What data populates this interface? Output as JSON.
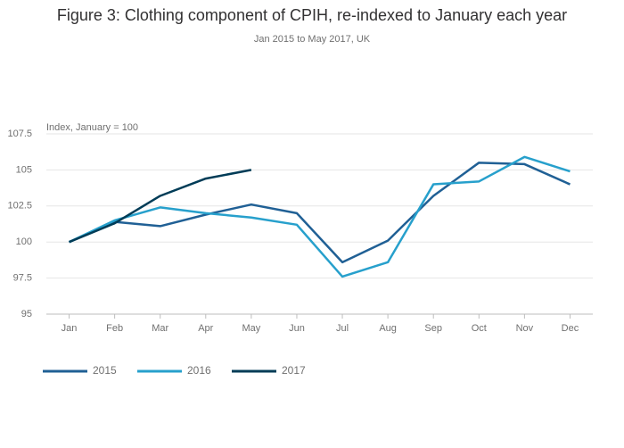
{
  "chart_data": {
    "type": "line",
    "title": "Figure 3: Clothing component of CPIH, re-indexed to January each year",
    "subtitle": "Jan 2015 to May 2017, UK",
    "y_label": "Index, January = 100",
    "categories": [
      "Jan",
      "Feb",
      "Mar",
      "Apr",
      "May",
      "Jun",
      "Jul",
      "Aug",
      "Sep",
      "Oct",
      "Nov",
      "Dec"
    ],
    "series": [
      {
        "name": "2015",
        "color": "#206095",
        "values": [
          100,
          101.4,
          101.1,
          101.9,
          102.6,
          102.0,
          98.6,
          100.1,
          103.2,
          105.5,
          105.4,
          104.0
        ]
      },
      {
        "name": "2016",
        "color": "#27a0cc",
        "values": [
          100,
          101.5,
          102.4,
          102.0,
          101.7,
          101.2,
          97.6,
          98.6,
          104.0,
          104.2,
          105.9,
          104.9
        ]
      },
      {
        "name": "2017",
        "color": "#003c57",
        "values": [
          100,
          101.3,
          103.2,
          104.4,
          105.0,
          null,
          null,
          null,
          null,
          null,
          null,
          null
        ]
      }
    ],
    "ylim": [
      95,
      107.5
    ],
    "yticks": [
      95,
      97.5,
      100,
      102.5,
      105,
      107.5
    ],
    "grid": true,
    "legend": "bottom"
  }
}
